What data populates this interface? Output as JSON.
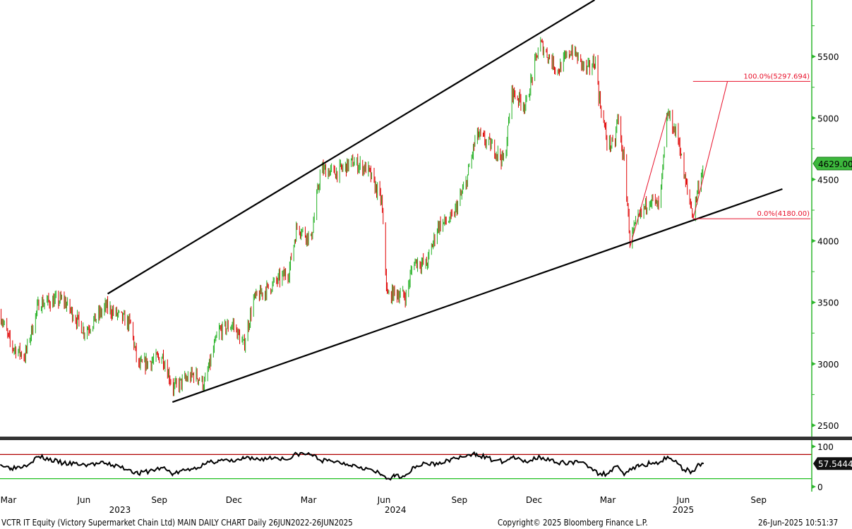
{
  "chart_data": [
    {
      "type": "bar",
      "subtype": "ohlc",
      "panel": "price",
      "ylim": [
        2300,
        5900
      ],
      "yticks": [
        2500,
        3000,
        3500,
        4000,
        4500,
        5000,
        5500
      ],
      "last_price": "4629.00",
      "colors": {
        "up": "#22b022",
        "down": "#e00000",
        "axis": "#2fb52f",
        "last_label_bg": "#3cb83c"
      },
      "points": [
        {
          "date": "2023-02-19",
          "close": 3406
        },
        {
          "date": "2023-03-04",
          "close": 3148
        },
        {
          "date": "2023-03-21",
          "close": 3062
        },
        {
          "date": "2023-04-07",
          "close": 3493
        },
        {
          "date": "2023-05-07",
          "close": 3521
        },
        {
          "date": "2023-06-02",
          "close": 3263
        },
        {
          "date": "2023-06-28",
          "close": 3464
        },
        {
          "date": "2023-07-28",
          "close": 3320
        },
        {
          "date": "2023-08-06",
          "close": 2976
        },
        {
          "date": "2023-09-05",
          "close": 3062
        },
        {
          "date": "2023-09-18",
          "close": 2804
        },
        {
          "date": "2023-10-14",
          "close": 2919
        },
        {
          "date": "2023-10-26",
          "close": 2833
        },
        {
          "date": "2023-11-12",
          "close": 3263
        },
        {
          "date": "2023-11-30",
          "close": 3320
        },
        {
          "date": "2023-12-13",
          "close": 3148
        },
        {
          "date": "2023-12-25",
          "close": 3521
        },
        {
          "date": "2024-01-21",
          "close": 3665
        },
        {
          "date": "2024-02-06",
          "close": 3751
        },
        {
          "date": "2024-02-16",
          "close": 4124
        },
        {
          "date": "2024-03-04",
          "close": 4009
        },
        {
          "date": "2024-03-16",
          "close": 4583
        },
        {
          "date": "2024-04-03",
          "close": 4554
        },
        {
          "date": "2024-04-24",
          "close": 4640
        },
        {
          "date": "2024-05-12",
          "close": 4583
        },
        {
          "date": "2024-05-29",
          "close": 4324
        },
        {
          "date": "2024-06-05",
          "close": 3550
        },
        {
          "date": "2024-06-14",
          "close": 3579
        },
        {
          "date": "2024-06-28",
          "close": 3550
        },
        {
          "date": "2024-07-07",
          "close": 3837
        },
        {
          "date": "2024-07-23",
          "close": 3808
        },
        {
          "date": "2024-08-06",
          "close": 4124
        },
        {
          "date": "2024-08-23",
          "close": 4181
        },
        {
          "date": "2024-09-09",
          "close": 4468
        },
        {
          "date": "2024-09-22",
          "close": 4870
        },
        {
          "date": "2024-10-13",
          "close": 4755
        },
        {
          "date": "2024-10-26",
          "close": 4640
        },
        {
          "date": "2024-11-04",
          "close": 5214
        },
        {
          "date": "2024-11-21",
          "close": 5099
        },
        {
          "date": "2024-12-08",
          "close": 5615
        },
        {
          "date": "2024-12-30",
          "close": 5385
        },
        {
          "date": "2025-01-16",
          "close": 5558
        },
        {
          "date": "2025-02-03",
          "close": 5385
        },
        {
          "date": "2025-02-15",
          "close": 5472
        },
        {
          "date": "2025-02-18",
          "close": 5185
        },
        {
          "date": "2025-02-28",
          "close": 4812
        },
        {
          "date": "2025-03-09",
          "close": 4755
        },
        {
          "date": "2025-03-13",
          "close": 5008
        },
        {
          "date": "2025-03-22",
          "close": 4583
        },
        {
          "date": "2025-03-28",
          "close": 4009
        },
        {
          "date": "2025-04-08",
          "close": 4181
        },
        {
          "date": "2025-04-21",
          "close": 4353
        },
        {
          "date": "2025-05-03",
          "close": 4266
        },
        {
          "date": "2025-05-13",
          "close": 5041
        },
        {
          "date": "2025-05-27",
          "close": 4812
        },
        {
          "date": "2025-06-02",
          "close": 4525
        },
        {
          "date": "2025-06-13",
          "close": 4210
        },
        {
          "date": "2025-06-20",
          "close": 4468
        },
        {
          "date": "2025-06-26",
          "close": 4629
        }
      ],
      "trendlines": [
        {
          "from": {
            "date": "2023-06-30",
            "value": 3570
          },
          "to": {
            "date": "2025-02-13",
            "value": 5960
          },
          "color": "#000000"
        },
        {
          "from": {
            "date": "2023-09-17",
            "value": 2689
          },
          "to": {
            "date": "2025-09-30",
            "value": 4422
          },
          "color": "#000000"
        }
      ],
      "fibonacci": {
        "color": "#e8102a",
        "levels": [
          {
            "label": "100.0%(5297.694)",
            "value": 5297.694
          },
          {
            "label": "0.0%(4180.00)",
            "value": 4180.0
          }
        ],
        "start_date": "2025-06-13",
        "end_date": "2025-09-05",
        "legs": [
          {
            "from": {
              "date": "2025-03-28",
              "value": 3950
            },
            "to": {
              "date": "2025-05-13",
              "value": 5041
            }
          },
          {
            "from": {
              "date": "2025-06-13",
              "value": 4180
            },
            "to": {
              "date": "2025-07-25",
              "value": 5297.694
            }
          }
        ]
      }
    },
    {
      "type": "line",
      "panel": "rsi",
      "ylim": [
        0,
        100
      ],
      "yticks": [
        0,
        100
      ],
      "upper_band": 80,
      "lower_band": 20,
      "last_value": "57.5444",
      "colors": {
        "line": "#000000",
        "upper": "#b00000",
        "lower": "#22c022"
      },
      "points": [
        {
          "date": "2023-02-19",
          "value": 55
        },
        {
          "date": "2023-03-04",
          "value": 46
        },
        {
          "date": "2023-03-21",
          "value": 53
        },
        {
          "date": "2023-04-07",
          "value": 75
        },
        {
          "date": "2023-05-07",
          "value": 58
        },
        {
          "date": "2023-06-02",
          "value": 55
        },
        {
          "date": "2023-06-28",
          "value": 58
        },
        {
          "date": "2023-07-28",
          "value": 42
        },
        {
          "date": "2023-08-06",
          "value": 32
        },
        {
          "date": "2023-09-05",
          "value": 47
        },
        {
          "date": "2023-09-18",
          "value": 32
        },
        {
          "date": "2023-10-14",
          "value": 48
        },
        {
          "date": "2023-10-26",
          "value": 55
        },
        {
          "date": "2023-11-12",
          "value": 66
        },
        {
          "date": "2023-11-30",
          "value": 62
        },
        {
          "date": "2023-12-13",
          "value": 70
        },
        {
          "date": "2023-12-25",
          "value": 68
        },
        {
          "date": "2024-01-21",
          "value": 72
        },
        {
          "date": "2024-02-06",
          "value": 68
        },
        {
          "date": "2024-02-16",
          "value": 82
        },
        {
          "date": "2024-03-04",
          "value": 80
        },
        {
          "date": "2024-03-16",
          "value": 65
        },
        {
          "date": "2024-04-03",
          "value": 62
        },
        {
          "date": "2024-04-24",
          "value": 55
        },
        {
          "date": "2024-05-12",
          "value": 45
        },
        {
          "date": "2024-05-29",
          "value": 30
        },
        {
          "date": "2024-06-05",
          "value": 20
        },
        {
          "date": "2024-06-14",
          "value": 25
        },
        {
          "date": "2024-06-28",
          "value": 30
        },
        {
          "date": "2024-07-07",
          "value": 50
        },
        {
          "date": "2024-07-23",
          "value": 58
        },
        {
          "date": "2024-08-06",
          "value": 55
        },
        {
          "date": "2024-08-23",
          "value": 70
        },
        {
          "date": "2024-09-09",
          "value": 75
        },
        {
          "date": "2024-09-22",
          "value": 82
        },
        {
          "date": "2024-10-13",
          "value": 65
        },
        {
          "date": "2024-10-26",
          "value": 62
        },
        {
          "date": "2024-11-04",
          "value": 72
        },
        {
          "date": "2024-11-21",
          "value": 62
        },
        {
          "date": "2024-12-08",
          "value": 75
        },
        {
          "date": "2024-12-30",
          "value": 58
        },
        {
          "date": "2025-01-16",
          "value": 62
        },
        {
          "date": "2025-02-03",
          "value": 55
        },
        {
          "date": "2025-02-15",
          "value": 40
        },
        {
          "date": "2025-02-18",
          "value": 30
        },
        {
          "date": "2025-02-28",
          "value": 32
        },
        {
          "date": "2025-03-09",
          "value": 50
        },
        {
          "date": "2025-03-13",
          "value": 52
        },
        {
          "date": "2025-03-22",
          "value": 32
        },
        {
          "date": "2025-03-28",
          "value": 45
        },
        {
          "date": "2025-04-08",
          "value": 50
        },
        {
          "date": "2025-04-21",
          "value": 58
        },
        {
          "date": "2025-05-03",
          "value": 60
        },
        {
          "date": "2025-05-13",
          "value": 75
        },
        {
          "date": "2025-05-27",
          "value": 55
        },
        {
          "date": "2025-06-02",
          "value": 42
        },
        {
          "date": "2025-06-13",
          "value": 38
        },
        {
          "date": "2025-06-20",
          "value": 57
        },
        {
          "date": "2025-06-26",
          "value": 57.5444
        }
      ]
    }
  ],
  "x_axis": {
    "months": [
      {
        "label": "Mar",
        "date": "2023-03-01"
      },
      {
        "label": "Jun",
        "date": "2023-06-01"
      },
      {
        "label": "Sep",
        "date": "2023-09-01"
      },
      {
        "label": "Dec",
        "date": "2023-12-01"
      },
      {
        "label": "Mar",
        "date": "2024-03-01"
      },
      {
        "label": "Jun",
        "date": "2024-06-01"
      },
      {
        "label": "Sep",
        "date": "2024-09-01"
      },
      {
        "label": "Dec",
        "date": "2024-12-01"
      },
      {
        "label": "Mar",
        "date": "2025-03-01"
      },
      {
        "label": "Jun",
        "date": "2025-06-01"
      },
      {
        "label": "Sep",
        "date": "2025-09-01"
      }
    ],
    "years": [
      {
        "label": "2023",
        "date": "2023-07-15"
      },
      {
        "label": "2024",
        "date": "2024-06-15"
      },
      {
        "label": "2025",
        "date": "2025-06-01"
      }
    ]
  },
  "footer": {
    "security": "VCTR IT Equity (Victory Supermarket Chain Ltd) MAIN DAILY CHART  Daily 26JUN2022-26JUN2025",
    "copyright": "Copyright© 2025 Bloomberg Finance L.P.",
    "timestamp": "26-Jun-2025 10:51:37"
  }
}
